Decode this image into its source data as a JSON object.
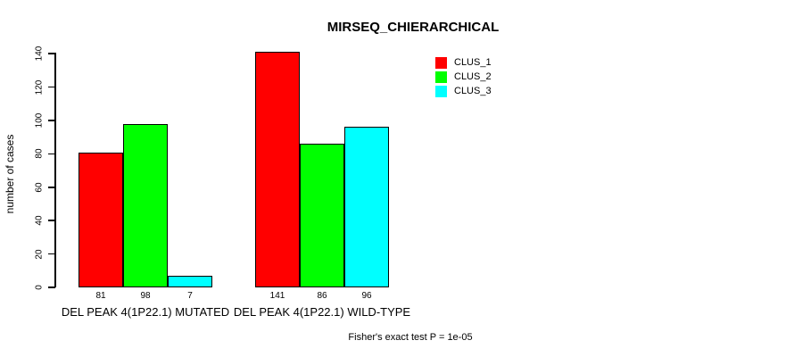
{
  "title": "MIRSEQ_CHIERARCHICAL",
  "chart_data": {
    "type": "bar",
    "title": "MIRSEQ_CHIERARCHICAL",
    "categories": [
      "DEL PEAK 4(1P22.1) MUTATED",
      "DEL PEAK 4(1P22.1) WILD-TYPE"
    ],
    "series": [
      {
        "name": "CLUS_1",
        "color": "#ff0000",
        "values": [
          81,
          141
        ]
      },
      {
        "name": "CLUS_2",
        "color": "#00ff00",
        "values": [
          98,
          86
        ]
      },
      {
        "name": "CLUS_3",
        "color": "#00ffff",
        "values": [
          7,
          96
        ]
      }
    ],
    "xlabel": "",
    "ylabel": "number of cases",
    "ylim": [
      0,
      140
    ],
    "yticks": [
      0,
      20,
      40,
      60,
      80,
      100,
      120,
      140
    ],
    "grid": false,
    "bar_value_labels_shown": true,
    "legend_position": "top-right"
  },
  "legend": {
    "entries": [
      {
        "label": "CLUS_1",
        "color": "#ff0000"
      },
      {
        "label": "CLUS_2",
        "color": "#00ff00"
      },
      {
        "label": "CLUS_3",
        "color": "#00ffff"
      }
    ]
  },
  "footer": {
    "note": "Fisher's exact test P = 1e-05"
  }
}
